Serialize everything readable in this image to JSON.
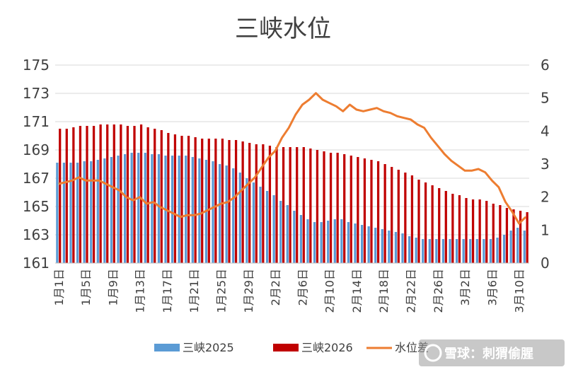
{
  "chart_data": {
    "type": "bar",
    "title": "三峡水位",
    "categories": [
      "1月1日",
      "1月2日",
      "1月3日",
      "1月4日",
      "1月5日",
      "1月6日",
      "1月7日",
      "1月8日",
      "1月9日",
      "1月10日",
      "1月11日",
      "1月12日",
      "1月13日",
      "1月14日",
      "1月15日",
      "1月16日",
      "1月17日",
      "1月18日",
      "1月19日",
      "1月20日",
      "1月21日",
      "1月22日",
      "1月23日",
      "1月24日",
      "1月25日",
      "1月26日",
      "1月27日",
      "1月28日",
      "1月29日",
      "1月30日",
      "1月31日",
      "2月1日",
      "2月2日",
      "2月3日",
      "2月4日",
      "2月5日",
      "2月6日",
      "2月7日",
      "2月8日",
      "2月9日",
      "2月10日",
      "2月11日",
      "2月12日",
      "2月13日",
      "2月14日",
      "2月15日",
      "2月16日",
      "2月17日",
      "2月18日",
      "2月19日",
      "2月20日",
      "2月21日",
      "2月22日",
      "2月23日",
      "2月24日",
      "2月25日",
      "2月26日",
      "2月27日",
      "2月28日",
      "3月1日",
      "3月2日",
      "3月3日",
      "3月4日",
      "3月5日",
      "3月6日",
      "3月7日",
      "3月8日",
      "3月9日",
      "3月10日",
      "3月11日"
    ],
    "xtick_labels": [
      "1月1日",
      "1月5日",
      "1月9日",
      "1月13日",
      "1月17日",
      "1月21日",
      "1月25日",
      "1月29日",
      "2月2日",
      "2月6日",
      "2月10日",
      "2月14日",
      "2月18日",
      "2月22日",
      "2月26日",
      "3月2日",
      "3月6日",
      "3月10日"
    ],
    "xtick_indices": [
      0,
      4,
      8,
      12,
      16,
      20,
      24,
      28,
      32,
      36,
      40,
      44,
      48,
      52,
      56,
      60,
      64,
      68
    ],
    "y_left": {
      "min": 161,
      "max": 175,
      "ticks": [
        161,
        163,
        165,
        167,
        169,
        171,
        173,
        175
      ]
    },
    "y_right": {
      "min": 0,
      "max": 6,
      "ticks": [
        0,
        1,
        2,
        3,
        4,
        5,
        6
      ]
    },
    "series": [
      {
        "name": "三峡2025",
        "kind": "bar",
        "axis": "left",
        "color": "#5b9bd5",
        "values": [
          168.1,
          168.1,
          168.1,
          168.1,
          168.2,
          168.2,
          168.3,
          168.4,
          168.5,
          168.6,
          168.7,
          168.8,
          168.8,
          168.8,
          168.7,
          168.7,
          168.6,
          168.6,
          168.6,
          168.6,
          168.5,
          168.4,
          168.3,
          168.2,
          168.0,
          167.9,
          167.7,
          167.4,
          167.0,
          166.7,
          166.4,
          166.1,
          165.8,
          165.4,
          165.1,
          164.7,
          164.4,
          164.1,
          163.9,
          163.9,
          164.0,
          164.1,
          164.1,
          163.9,
          163.8,
          163.7,
          163.6,
          163.5,
          163.4,
          163.3,
          163.2,
          163.1,
          162.9,
          162.8,
          162.7,
          162.7,
          162.7,
          162.7,
          162.7,
          162.7,
          162.7,
          162.7,
          162.7,
          162.7,
          162.7,
          162.8,
          163.0,
          163.3,
          163.5,
          163.3
        ]
      },
      {
        "name": "三峡2026",
        "kind": "bar",
        "axis": "left",
        "color": "#c00000",
        "values": [
          170.5,
          170.5,
          170.6,
          170.7,
          170.7,
          170.7,
          170.8,
          170.8,
          170.8,
          170.8,
          170.7,
          170.7,
          170.8,
          170.6,
          170.5,
          170.4,
          170.2,
          170.1,
          170.0,
          170.0,
          169.9,
          169.8,
          169.8,
          169.8,
          169.8,
          169.7,
          169.7,
          169.6,
          169.5,
          169.4,
          169.4,
          169.3,
          169.2,
          169.2,
          169.2,
          169.2,
          169.2,
          169.1,
          169.0,
          168.9,
          168.8,
          168.8,
          168.7,
          168.6,
          168.5,
          168.4,
          168.3,
          168.2,
          168.0,
          167.8,
          167.6,
          167.4,
          167.2,
          166.9,
          166.7,
          166.5,
          166.3,
          166.1,
          165.9,
          165.8,
          165.6,
          165.5,
          165.5,
          165.4,
          165.2,
          165.1,
          164.9,
          164.8,
          164.7,
          164.6
        ]
      },
      {
        "name": "水位差",
        "kind": "line",
        "axis": "right",
        "color": "#ed7d31",
        "values": [
          2.4,
          2.45,
          2.5,
          2.6,
          2.5,
          2.5,
          2.5,
          2.4,
          2.3,
          2.2,
          2.0,
          1.9,
          2.0,
          1.8,
          1.85,
          1.7,
          1.6,
          1.5,
          1.4,
          1.45,
          1.45,
          1.5,
          1.6,
          1.7,
          1.8,
          1.85,
          2.0,
          2.2,
          2.4,
          2.6,
          2.9,
          3.2,
          3.4,
          3.8,
          4.1,
          4.5,
          4.8,
          4.95,
          5.15,
          4.95,
          4.85,
          4.75,
          4.6,
          4.8,
          4.65,
          4.6,
          4.65,
          4.7,
          4.6,
          4.55,
          4.45,
          4.4,
          4.35,
          4.2,
          4.1,
          3.8,
          3.55,
          3.3,
          3.1,
          2.95,
          2.8,
          2.8,
          2.85,
          2.75,
          2.5,
          2.3,
          1.85,
          1.55,
          1.2,
          1.4
        ]
      }
    ],
    "legend": {
      "position": "bottom"
    },
    "grid": {
      "horizontal": true,
      "vertical": false
    }
  },
  "watermark": "雪球：刺猬偷腥"
}
